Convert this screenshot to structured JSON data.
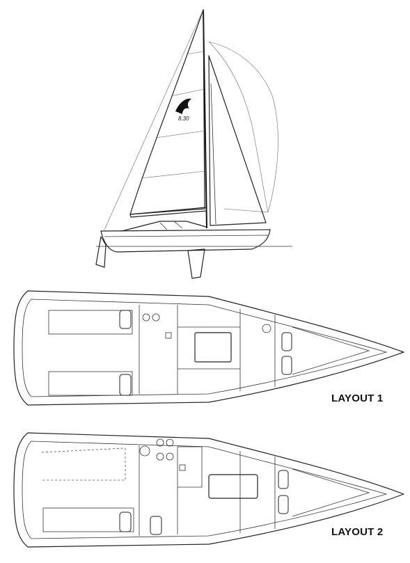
{
  "sail_marking": "8.30",
  "layouts": [
    {
      "label": "LAYOUT 1"
    },
    {
      "label": "LAYOUT 2"
    }
  ]
}
